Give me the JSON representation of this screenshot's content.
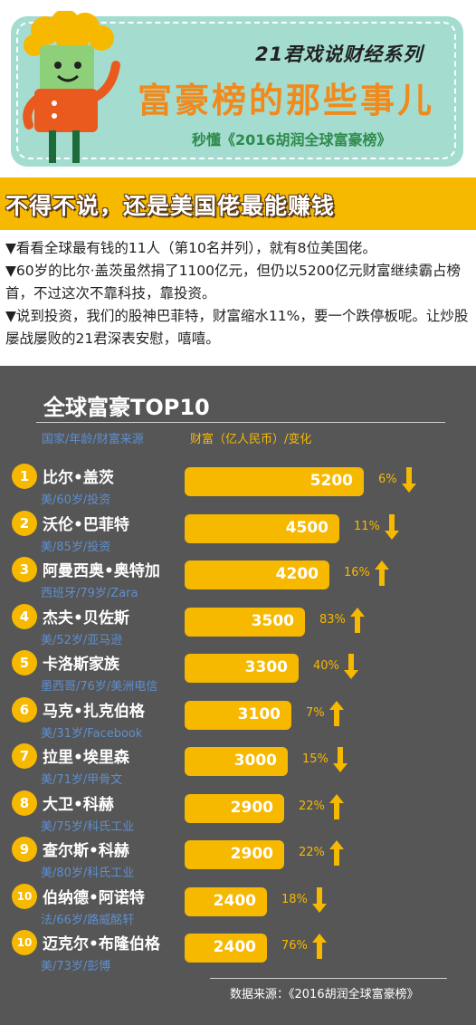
{
  "header": {
    "series": "21君戏说财经系列",
    "title": "富豪榜的那些事儿",
    "subtitle": "秒懂《2016胡润全球富豪榜》"
  },
  "banner": "不得不说，还是美国佬最能赚钱",
  "paragraphs": [
    "▼看看全球最有钱的11人（第10名并列），就有8位美国佬。",
    "▼60岁的比尔·盖茨虽然捐了1100亿元，但仍以5200亿元财富继续霸占榜首，不过这次不靠科技，靠投资。",
    "▼说到投资，我们的股神巴菲特，财富缩水11%，要一个跌停板呢。让炒股屡战屡败的21君深表安慰，嘻嘻。"
  ],
  "colors": {
    "accent": "#f7b800",
    "panel": "#565656",
    "meta": "#5d8fd0",
    "card": "#a4ddd0",
    "title": "#f08a1c"
  },
  "chart_data": {
    "type": "bar",
    "title": "全球富豪TOP10",
    "col_left": "国家/年龄/财富来源",
    "col_right": "财富（亿人民币）/变化",
    "source": "数据来源：《2016胡润全球富豪榜》",
    "rows": [
      {
        "rank": "1",
        "name": "比尔•盖茨",
        "meta": "美/60岁/投资",
        "value": 5200,
        "change": "6%",
        "dir": "down"
      },
      {
        "rank": "2",
        "name": "沃伦•巴菲特",
        "meta": "美/85岁/投资",
        "value": 4500,
        "change": "11%",
        "dir": "down"
      },
      {
        "rank": "3",
        "name": "阿曼西奥•奥特加",
        "meta": "西班牙/79岁/Zara",
        "value": 4200,
        "change": "16%",
        "dir": "up"
      },
      {
        "rank": "4",
        "name": "杰夫•贝佐斯",
        "meta": "美/52岁/亚马逊",
        "value": 3500,
        "change": "83%",
        "dir": "up"
      },
      {
        "rank": "5",
        "name": "卡洛斯家族",
        "meta": "墨西哥/76岁/美洲电信",
        "value": 3300,
        "change": "40%",
        "dir": "down"
      },
      {
        "rank": "6",
        "name": "马克•扎克伯格",
        "meta": "美/31岁/Facebook",
        "value": 3100,
        "change": "7%",
        "dir": "up"
      },
      {
        "rank": "7",
        "name": "拉里•埃里森",
        "meta": "美/71岁/甲骨文",
        "value": 3000,
        "change": "15%",
        "dir": "down"
      },
      {
        "rank": "8",
        "name": "大卫•科赫",
        "meta": "美/75岁/科氏工业",
        "value": 2900,
        "change": "22%",
        "dir": "up"
      },
      {
        "rank": "9",
        "name": "查尔斯•科赫",
        "meta": "美/80岁/科氏工业",
        "value": 2900,
        "change": "22%",
        "dir": "up"
      },
      {
        "rank": "10",
        "name": "伯纳德•阿诺特",
        "meta": "法/66岁/路威酩轩",
        "value": 2400,
        "change": "18%",
        "dir": "down"
      },
      {
        "rank": "10",
        "name": "迈克尔•布隆伯格",
        "meta": "美/73岁/彭博",
        "value": 2400,
        "change": "76%",
        "dir": "up"
      }
    ]
  }
}
